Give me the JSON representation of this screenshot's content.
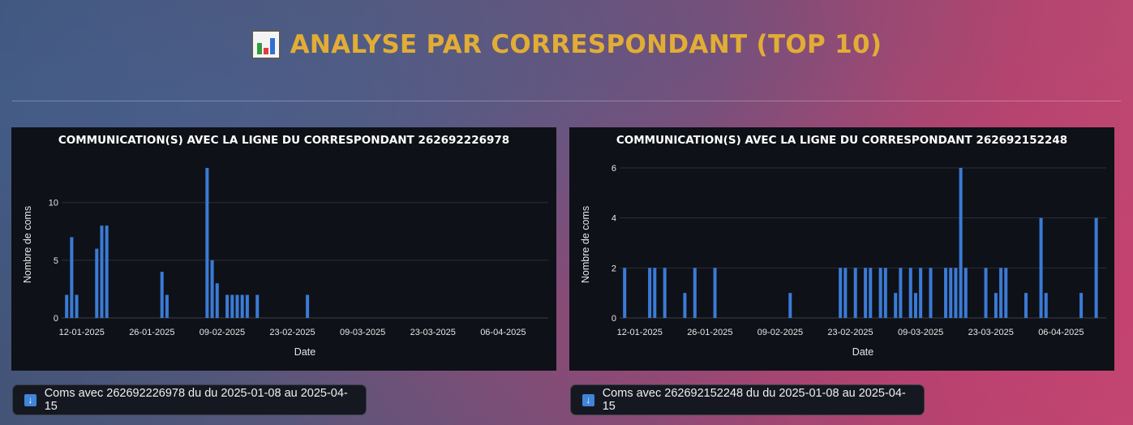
{
  "header": {
    "icon": "bar-chart-icon",
    "title": "ANALYSE PAR CORRESPONDANT (TOP 10)"
  },
  "colors": {
    "accent": "#e2ad35",
    "bar": "#3a7bd5",
    "panel_bg": "#0f1118"
  },
  "chart_data": [
    {
      "type": "bar",
      "title": "COMMUNICATION(S) AVEC LA LIGNE DU CORRESPONDANT 262692226978",
      "xlabel": "Date",
      "ylabel": "Nombre de coms",
      "xlim": [
        "2025-01-08",
        "2025-04-15"
      ],
      "ylim": [
        0,
        13
      ],
      "yticks": [
        0,
        5,
        10
      ],
      "xticks": [
        "12-01-2025",
        "26-01-2025",
        "09-02-2025",
        "23-02-2025",
        "09-03-2025",
        "23-03-2025",
        "06-04-2025"
      ],
      "grid": true,
      "x": [
        "2025-01-09",
        "2025-01-10",
        "2025-01-11",
        "2025-01-15",
        "2025-01-16",
        "2025-01-17",
        "2025-01-28",
        "2025-01-29",
        "2025-02-06",
        "2025-02-07",
        "2025-02-08",
        "2025-02-10",
        "2025-02-11",
        "2025-02-12",
        "2025-02-13",
        "2025-02-14",
        "2025-02-16",
        "2025-02-26"
      ],
      "values": [
        2,
        7,
        2,
        6,
        8,
        8,
        4,
        2,
        13,
        5,
        3,
        2,
        2,
        2,
        2,
        2,
        2,
        2
      ]
    },
    {
      "type": "bar",
      "title": "COMMUNICATION(S) AVEC LA LIGNE DU CORRESPONDANT 262692152248",
      "xlabel": "Date",
      "ylabel": "Nombre de coms",
      "xlim": [
        "2025-01-08",
        "2025-04-15"
      ],
      "ylim": [
        0,
        6
      ],
      "yticks": [
        0,
        2,
        4,
        6
      ],
      "xticks": [
        "12-01-2025",
        "26-01-2025",
        "09-02-2025",
        "23-02-2025",
        "09-03-2025",
        "23-03-2025",
        "06-04-2025"
      ],
      "grid": true,
      "x": [
        "2025-01-09",
        "2025-01-14",
        "2025-01-15",
        "2025-01-17",
        "2025-01-21",
        "2025-01-23",
        "2025-01-27",
        "2025-02-11",
        "2025-02-21",
        "2025-02-22",
        "2025-02-24",
        "2025-02-26",
        "2025-02-27",
        "2025-03-01",
        "2025-03-02",
        "2025-03-04",
        "2025-03-05",
        "2025-03-07",
        "2025-03-08",
        "2025-03-09",
        "2025-03-11",
        "2025-03-14",
        "2025-03-15",
        "2025-03-16",
        "2025-03-17",
        "2025-03-18",
        "2025-03-22",
        "2025-03-24",
        "2025-03-25",
        "2025-03-26",
        "2025-03-30",
        "2025-04-02",
        "2025-04-03",
        "2025-04-10",
        "2025-04-13"
      ],
      "values": [
        2,
        2,
        2,
        2,
        1,
        2,
        2,
        1,
        2,
        2,
        2,
        2,
        2,
        2,
        2,
        1,
        2,
        2,
        1,
        2,
        2,
        2,
        2,
        2,
        6,
        2,
        2,
        1,
        2,
        2,
        1,
        4,
        1,
        1,
        4
      ]
    }
  ],
  "downloads": [
    {
      "icon": "download-arrow-icon",
      "icon_glyph": "↓",
      "label": "Coms avec 262692226978 du du 2025-01-08 au 2025-04-15"
    },
    {
      "icon": "download-arrow-icon",
      "icon_glyph": "↓",
      "label": "Coms avec 262692152248 du du 2025-01-08 au 2025-04-15"
    }
  ]
}
